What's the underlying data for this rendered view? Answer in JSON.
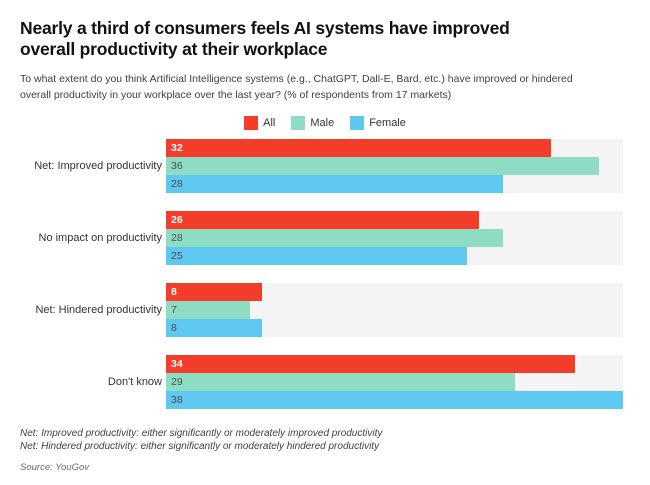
{
  "title": {
    "line1": "Nearly a third of consumers feels AI systems have improved",
    "line2": "overall productivity at their workplace"
  },
  "subtitle": {
    "line1": "To what extent do you think Artificial Intelligence systems (e.g., ChatGPT, Dall-E, Bard, etc.) have improved or hindered",
    "line2": "overall productivity in your workplace over the last year? (% of respondents from 17 markets)"
  },
  "legend": [
    {
      "label": "All",
      "color": "#f43c2b"
    },
    {
      "label": "Male",
      "color": "#8ddcc3"
    },
    {
      "label": "Female",
      "color": "#5fc8f0"
    }
  ],
  "chart_data": {
    "type": "bar",
    "orientation": "horizontal",
    "title": "Nearly a third of consumers feels AI systems have improved overall productivity at their workplace",
    "categories": [
      "Net: Improved productivity",
      "No impact on productivity",
      "Net: Hindered productivity",
      "Don't know"
    ],
    "series": [
      {
        "name": "All",
        "color": "#f43c2b",
        "values": [
          32,
          26,
          8,
          34
        ]
      },
      {
        "name": "Male",
        "color": "#8ddcc3",
        "values": [
          36,
          28,
          7,
          29
        ]
      },
      {
        "name": "Female",
        "color": "#5fc8f0",
        "values": [
          28,
          25,
          8,
          38
        ]
      }
    ],
    "xlim": [
      0,
      38
    ],
    "value_labels": "inside-bar-left",
    "legend_position": "top-center",
    "grid": false,
    "plot_background": "#f4f4f4"
  },
  "footnotes": {
    "line1": "Net: Improved productivity: either significantly or moderately improved productivity",
    "line2": "Net: Hindered productivity: either significantly or moderately hindered productivity"
  },
  "source": "Source: YouGov",
  "colors": {
    "accent_red": "#f43c2b",
    "teal": "#8ddcc3",
    "blue": "#5fc8f0",
    "plot_background": "#f4f4f4"
  }
}
